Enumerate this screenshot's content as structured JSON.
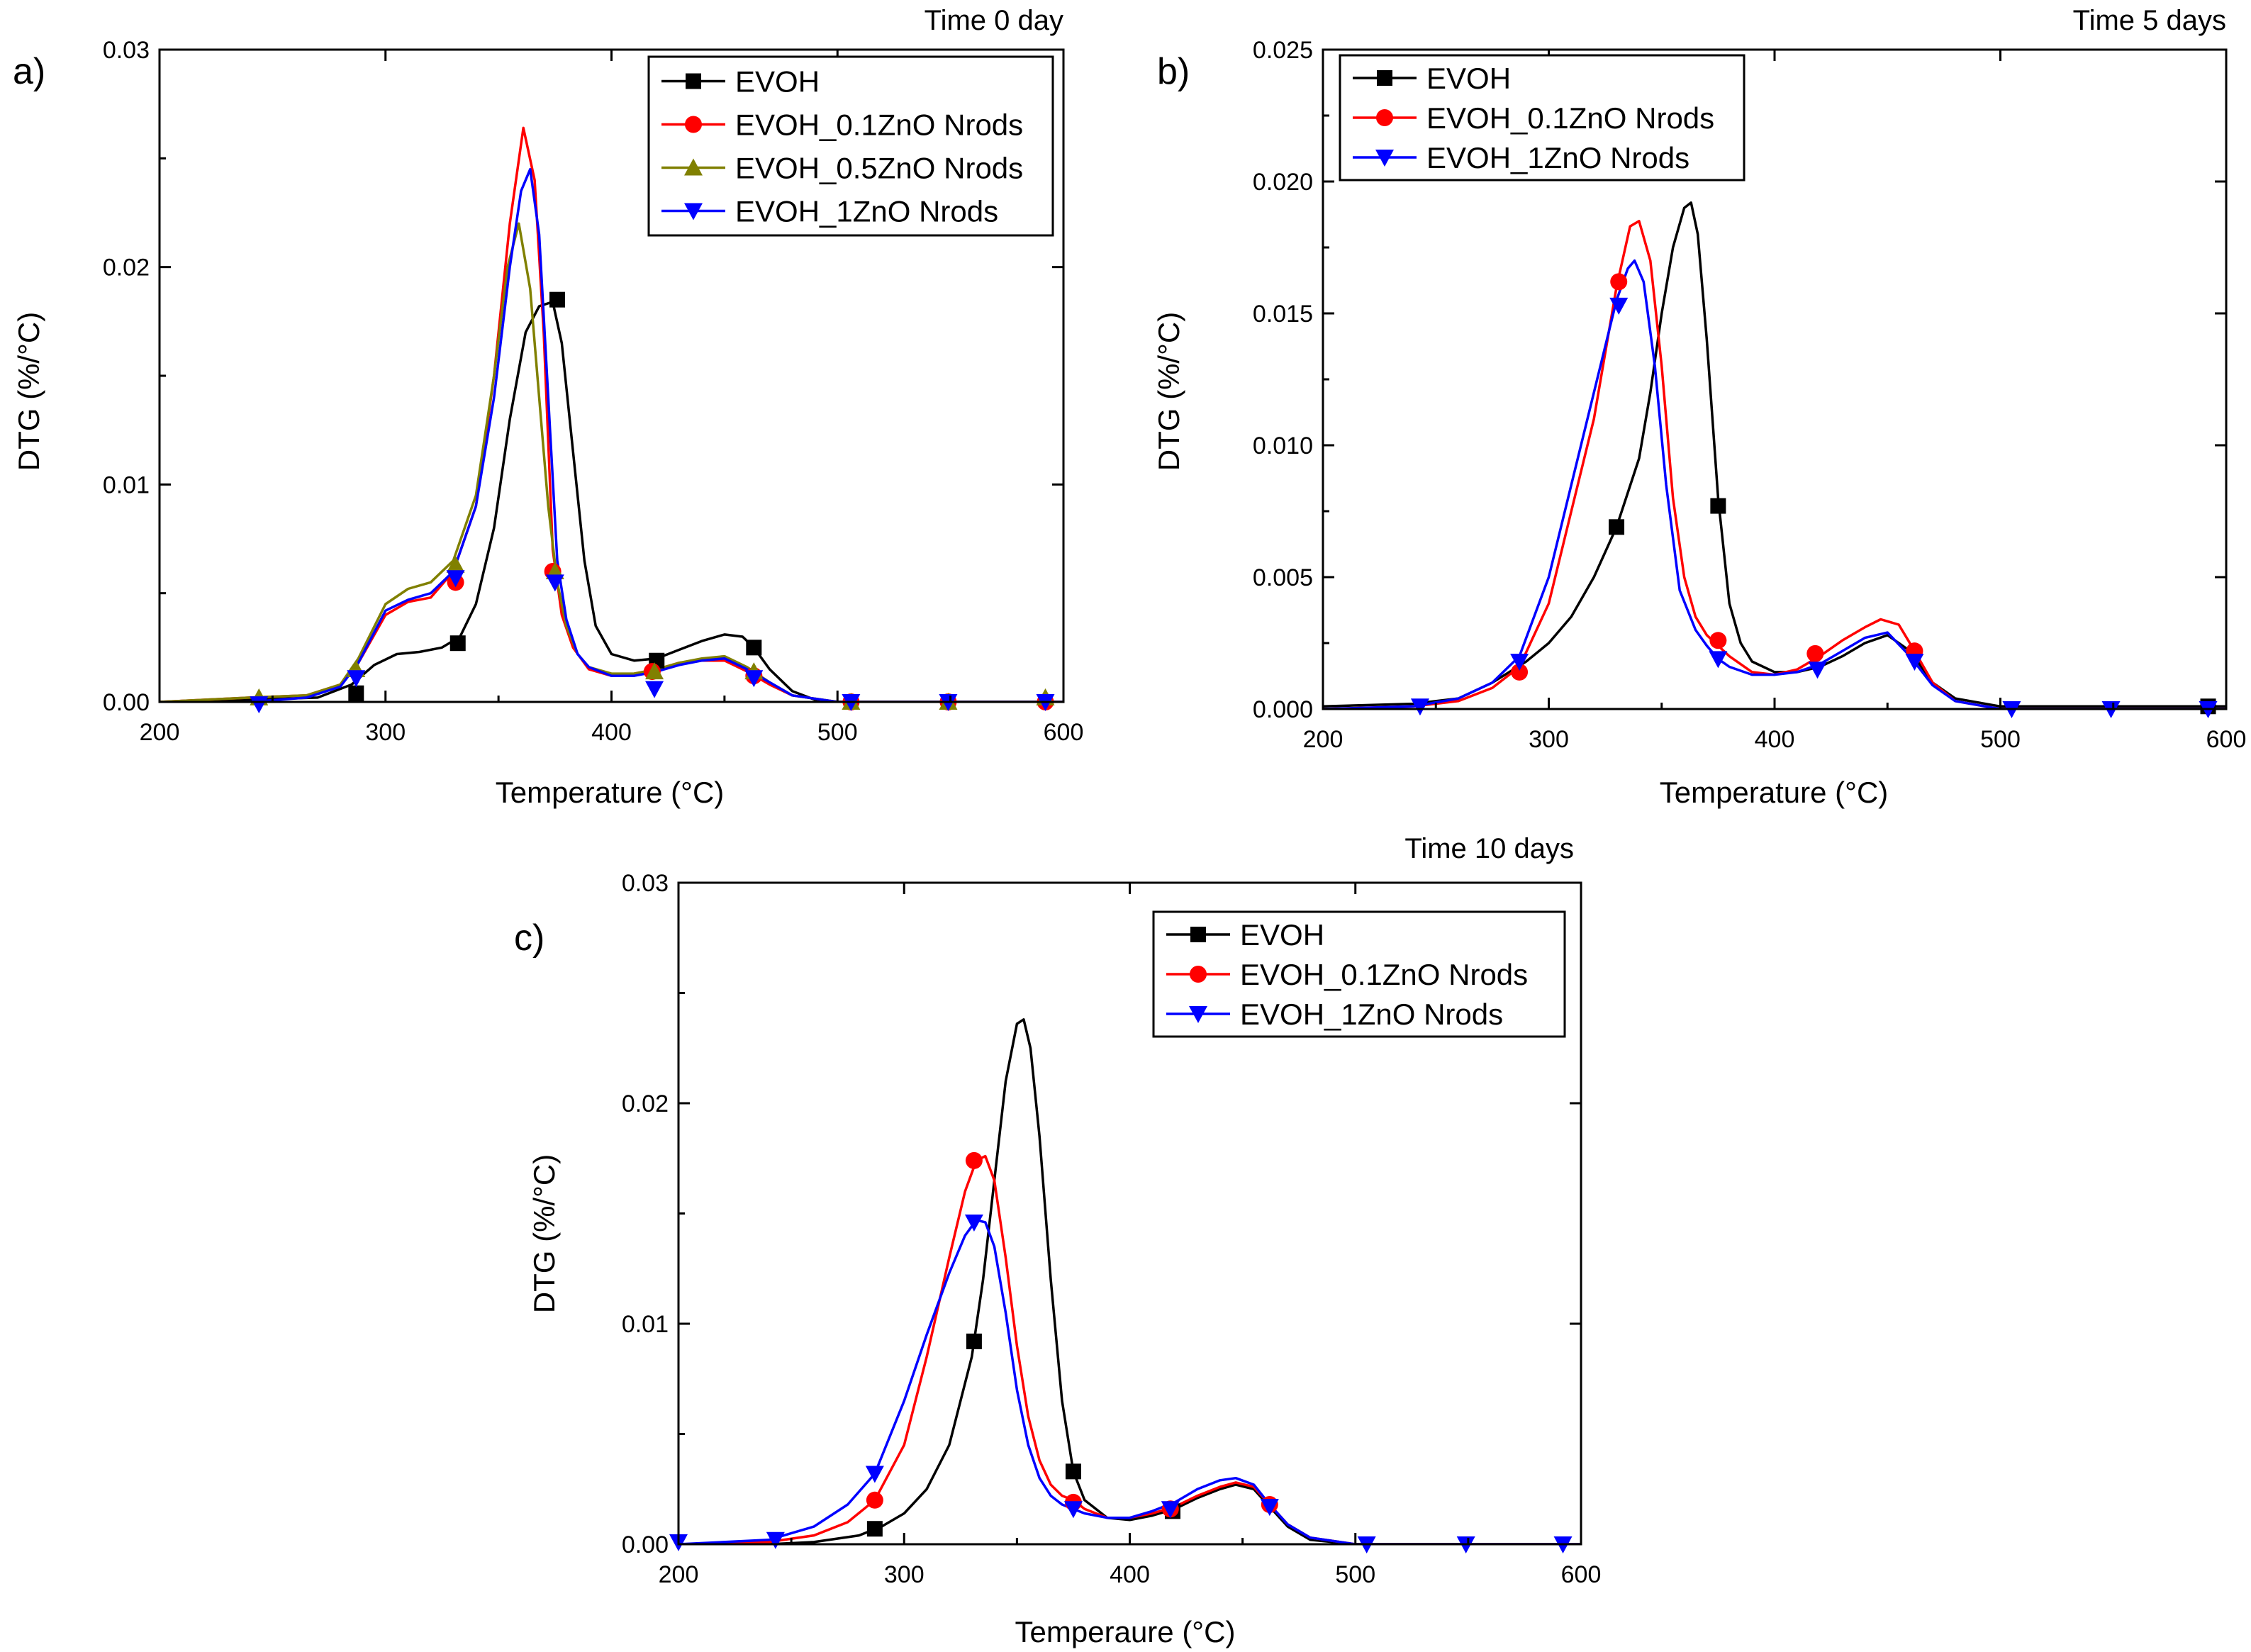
{
  "chart_data": [
    {
      "id": "a",
      "type": "line",
      "panel_label": "a)",
      "title": "Time 0 day",
      "xlabel": "Temperature (°C)",
      "ylabel": "DTG (%/°C)",
      "xlim": [
        200,
        600
      ],
      "ylim": [
        0,
        0.03
      ],
      "xticks": [
        200,
        300,
        400,
        500,
        600
      ],
      "xtick_labels": [
        "200",
        "300",
        "400",
        "500",
        "600"
      ],
      "yticks": [
        0,
        0.01,
        0.02,
        0.03
      ],
      "ytick_labels": [
        "0.00",
        "0.01",
        "0.02",
        "0.03"
      ],
      "legend_position": "top-right",
      "series": [
        {
          "name": "EVOH",
          "color": "#000000",
          "marker": "square",
          "x": [
            200,
            240,
            270,
            285,
            295,
            305,
            315,
            325,
            333,
            340,
            348,
            355,
            362,
            368,
            374,
            378,
            383,
            388,
            393,
            400,
            410,
            420,
            430,
            440,
            450,
            458,
            463,
            470,
            480,
            490,
            500,
            550,
            600
          ],
          "y": [
            0.0,
            0.0001,
            0.0002,
            0.0008,
            0.0017,
            0.0022,
            0.0023,
            0.0025,
            0.003,
            0.0045,
            0.008,
            0.013,
            0.017,
            0.0182,
            0.0184,
            0.0165,
            0.0115,
            0.0065,
            0.0035,
            0.0022,
            0.0019,
            0.002,
            0.0024,
            0.0028,
            0.0031,
            0.003,
            0.0025,
            0.0015,
            0.0005,
            0.0001,
            0.0,
            0.0,
            0.0
          ],
          "marker_x": [
            287,
            332,
            376,
            420,
            463
          ],
          "marker_y": [
            0.0004,
            0.0027,
            0.0185,
            0.0019,
            0.0025
          ]
        },
        {
          "name": "EVOH_0.1ZnO Nrods",
          "color": "#ff0000",
          "marker": "circle",
          "x": [
            200,
            240,
            265,
            280,
            288,
            300,
            310,
            320,
            330,
            340,
            348,
            355,
            361,
            366,
            370,
            374,
            378,
            383,
            390,
            400,
            410,
            420,
            430,
            440,
            450,
            460,
            470,
            480,
            500,
            550,
            600
          ],
          "y": [
            0.0,
            0.0002,
            0.0003,
            0.0008,
            0.0018,
            0.004,
            0.0046,
            0.0048,
            0.006,
            0.009,
            0.015,
            0.022,
            0.0264,
            0.024,
            0.017,
            0.007,
            0.004,
            0.0025,
            0.0015,
            0.0012,
            0.0013,
            0.0015,
            0.0018,
            0.0019,
            0.0019,
            0.0014,
            0.0008,
            0.0003,
            0.0,
            0.0,
            0.0
          ],
          "marker_x": [
            331,
            374,
            418,
            463,
            506,
            549,
            592
          ],
          "marker_y": [
            0.0055,
            0.006,
            0.0014,
            0.0012,
            0.0,
            0.0,
            0.0
          ]
        },
        {
          "name": "EVOH_0.5ZnO Nrods",
          "color": "#808000",
          "marker": "triangle-up",
          "x": [
            200,
            240,
            265,
            280,
            288,
            300,
            310,
            320,
            330,
            340,
            348,
            354,
            359,
            364,
            368,
            372,
            376,
            380,
            385,
            390,
            400,
            410,
            420,
            430,
            440,
            450,
            460,
            470,
            480,
            500,
            550,
            600
          ],
          "y": [
            0.0,
            0.0002,
            0.0003,
            0.0008,
            0.002,
            0.0045,
            0.0052,
            0.0055,
            0.0065,
            0.0095,
            0.015,
            0.02,
            0.022,
            0.019,
            0.014,
            0.009,
            0.0055,
            0.0035,
            0.0022,
            0.0016,
            0.0013,
            0.0013,
            0.0015,
            0.0018,
            0.002,
            0.0021,
            0.0016,
            0.0009,
            0.0003,
            0.0,
            0.0,
            0.0
          ],
          "marker_x": [
            244,
            287,
            331,
            375,
            419,
            463,
            506,
            549,
            592
          ],
          "marker_y": [
            0.0002,
            0.0015,
            0.0063,
            0.006,
            0.0014,
            0.0014,
            0.0,
            0.0,
            0.0002
          ]
        },
        {
          "name": "EVOH_1ZnO Nrods",
          "color": "#0000ff",
          "marker": "triangle-down",
          "x": [
            200,
            240,
            265,
            280,
            288,
            300,
            310,
            320,
            330,
            340,
            348,
            355,
            360,
            364,
            368,
            372,
            376,
            380,
            385,
            390,
            400,
            410,
            420,
            430,
            440,
            450,
            460,
            470,
            480,
            500,
            550,
            600
          ],
          "y": [
            -0.0001,
            0.0,
            0.0002,
            0.0007,
            0.0018,
            0.0042,
            0.0047,
            0.005,
            0.006,
            0.009,
            0.014,
            0.02,
            0.0235,
            0.0245,
            0.0215,
            0.014,
            0.0065,
            0.0038,
            0.0022,
            0.0016,
            0.0012,
            0.0012,
            0.0014,
            0.0017,
            0.0019,
            0.002,
            0.0015,
            0.0009,
            0.0003,
            0.0,
            0.0,
            0.0
          ],
          "marker_x": [
            244,
            287,
            331,
            375,
            419,
            463,
            506,
            549,
            592
          ],
          "marker_y": [
            -0.0001,
            0.0011,
            0.0057,
            0.0055,
            0.0006,
            0.0011,
            0.0,
            0.0,
            0.0
          ]
        }
      ]
    },
    {
      "id": "b",
      "type": "line",
      "panel_label": "b)",
      "title": "Time 5 days",
      "xlabel": "Temperature (°C)",
      "ylabel": "DTG (%/°C)",
      "xlim": [
        200,
        600
      ],
      "ylim": [
        0,
        0.025
      ],
      "xticks": [
        200,
        300,
        400,
        500,
        600
      ],
      "xtick_labels": [
        "200",
        "300",
        "400",
        "500",
        "600"
      ],
      "yticks": [
        0,
        0.005,
        0.01,
        0.015,
        0.02,
        0.025
      ],
      "ytick_labels": [
        "0.000",
        "0.005",
        "0.010",
        "0.015",
        "0.020",
        "0.025"
      ],
      "legend_position": "top-left",
      "series": [
        {
          "name": "EVOH",
          "color": "#000000",
          "marker": "square",
          "x": [
            200,
            240,
            260,
            275,
            290,
            300,
            310,
            320,
            330,
            340,
            345,
            350,
            355,
            360,
            363,
            366,
            370,
            375,
            380,
            385,
            390,
            400,
            410,
            420,
            430,
            440,
            450,
            460,
            470,
            480,
            500,
            550,
            600
          ],
          "y": [
            0.0001,
            0.0002,
            0.0004,
            0.001,
            0.0018,
            0.0025,
            0.0035,
            0.005,
            0.0069,
            0.0095,
            0.012,
            0.015,
            0.0175,
            0.019,
            0.0192,
            0.018,
            0.014,
            0.008,
            0.004,
            0.0025,
            0.0018,
            0.0014,
            0.0014,
            0.0016,
            0.002,
            0.0025,
            0.0028,
            0.0022,
            0.001,
            0.0004,
            0.0001,
            0.0001,
            0.0001
          ],
          "marker_x": [
            330,
            375,
            592
          ],
          "marker_y": [
            0.0069,
            0.0077,
            0.0001
          ]
        },
        {
          "name": "EVOH_0.1ZnO Nrods",
          "color": "#ff0000",
          "marker": "circle",
          "x": [
            200,
            240,
            260,
            275,
            287,
            300,
            310,
            320,
            330,
            336,
            340,
            345,
            350,
            355,
            360,
            365,
            370,
            375,
            380,
            390,
            400,
            410,
            420,
            430,
            440,
            447,
            455,
            462,
            470,
            480,
            500,
            550,
            600
          ],
          "y": [
            0.0,
            0.0001,
            0.0003,
            0.0008,
            0.0016,
            0.004,
            0.0075,
            0.011,
            0.016,
            0.0183,
            0.0185,
            0.017,
            0.013,
            0.008,
            0.005,
            0.0035,
            0.0028,
            0.0024,
            0.002,
            0.0014,
            0.0013,
            0.0015,
            0.002,
            0.0026,
            0.0031,
            0.0034,
            0.0032,
            0.0022,
            0.001,
            0.0003,
            0.0,
            0.0,
            0.0
          ],
          "marker_x": [
            287,
            331,
            375,
            418,
            462
          ],
          "marker_y": [
            0.0014,
            0.0162,
            0.0026,
            0.0021,
            0.0022
          ]
        },
        {
          "name": "EVOH_1ZnO Nrods",
          "color": "#0000ff",
          "marker": "triangle-down",
          "x": [
            200,
            240,
            260,
            275,
            287,
            300,
            310,
            320,
            330,
            335,
            338,
            342,
            347,
            352,
            358,
            365,
            370,
            375,
            380,
            390,
            400,
            410,
            420,
            430,
            440,
            450,
            460,
            470,
            480,
            500,
            550,
            600
          ],
          "y": [
            0.0,
            0.0001,
            0.0004,
            0.001,
            0.002,
            0.005,
            0.0085,
            0.012,
            0.0155,
            0.0167,
            0.017,
            0.0162,
            0.013,
            0.0085,
            0.0045,
            0.003,
            0.0024,
            0.0019,
            0.0016,
            0.0013,
            0.0013,
            0.0014,
            0.0017,
            0.0022,
            0.0027,
            0.0029,
            0.002,
            0.0009,
            0.0003,
            0.0,
            0.0,
            0.0
          ],
          "marker_x": [
            243,
            287,
            331,
            375,
            419,
            462,
            505,
            549,
            592
          ],
          "marker_y": [
            0.0001,
            0.0018,
            0.0153,
            0.0019,
            0.0015,
            0.0018,
            0.0,
            0.0,
            0.0
          ]
        }
      ]
    },
    {
      "id": "c",
      "type": "line",
      "panel_label": "c)",
      "title": "Time 10 days",
      "xlabel": "Temperaure (°C)",
      "ylabel": "DTG (%/°C)",
      "xlim": [
        200,
        600
      ],
      "ylim": [
        0,
        0.03
      ],
      "xticks": [
        200,
        300,
        400,
        500,
        600
      ],
      "xtick_labels": [
        "200",
        "300",
        "400",
        "500",
        "600"
      ],
      "yticks": [
        0,
        0.01,
        0.02,
        0.03
      ],
      "ytick_labels": [
        "0.00",
        "0.01",
        "0.02",
        "0.03"
      ],
      "legend_position": "top-right",
      "series": [
        {
          "name": "EVOH",
          "color": "#000000",
          "marker": "square",
          "x": [
            200,
            240,
            260,
            280,
            290,
            300,
            310,
            320,
            330,
            335,
            340,
            345,
            350,
            353,
            356,
            360,
            365,
            370,
            375,
            380,
            390,
            400,
            410,
            420,
            430,
            440,
            447,
            455,
            462,
            470,
            480,
            500,
            550,
            600
          ],
          "y": [
            0.0,
            0.0,
            0.0001,
            0.0004,
            0.0008,
            0.0014,
            0.0025,
            0.0045,
            0.0085,
            0.012,
            0.0165,
            0.021,
            0.0236,
            0.0238,
            0.0225,
            0.0185,
            0.012,
            0.0065,
            0.0033,
            0.002,
            0.0012,
            0.0011,
            0.0013,
            0.0016,
            0.0021,
            0.0025,
            0.0027,
            0.0025,
            0.0017,
            0.0008,
            0.0002,
            0.0,
            0.0,
            0.0
          ],
          "marker_x": [
            287,
            331,
            375,
            419
          ],
          "marker_y": [
            0.0007,
            0.0092,
            0.0033,
            0.0015
          ]
        },
        {
          "name": "EVOH_0.1ZnO Nrods",
          "color": "#ff0000",
          "marker": "circle",
          "x": [
            200,
            240,
            260,
            275,
            287,
            300,
            310,
            320,
            327,
            332,
            336,
            340,
            345,
            350,
            355,
            360,
            365,
            370,
            375,
            380,
            390,
            400,
            410,
            420,
            430,
            440,
            447,
            455,
            462,
            470,
            480,
            500,
            550,
            600
          ],
          "y": [
            0.0,
            0.0001,
            0.0004,
            0.001,
            0.002,
            0.0045,
            0.0085,
            0.013,
            0.016,
            0.0174,
            0.0176,
            0.0165,
            0.013,
            0.009,
            0.0058,
            0.0038,
            0.0027,
            0.0022,
            0.002,
            0.0016,
            0.0012,
            0.0012,
            0.0014,
            0.0017,
            0.0022,
            0.0026,
            0.0028,
            0.0026,
            0.0018,
            0.0009,
            0.0003,
            0.0,
            0.0,
            0.0
          ],
          "marker_x": [
            287,
            331,
            375,
            418,
            462
          ],
          "marker_y": [
            0.002,
            0.0174,
            0.0019,
            0.0016,
            0.0018
          ]
        },
        {
          "name": "EVOH_1ZnO Nrods",
          "color": "#0000ff",
          "marker": "triangle-down",
          "x": [
            200,
            240,
            260,
            275,
            287,
            300,
            310,
            320,
            327,
            332,
            336,
            340,
            345,
            350,
            355,
            360,
            365,
            370,
            375,
            380,
            390,
            400,
            410,
            420,
            430,
            440,
            447,
            455,
            462,
            470,
            480,
            500,
            550,
            600
          ],
          "y": [
            0.0,
            0.0002,
            0.0008,
            0.0018,
            0.0032,
            0.0065,
            0.0095,
            0.0123,
            0.014,
            0.0147,
            0.0146,
            0.0135,
            0.0105,
            0.007,
            0.0045,
            0.003,
            0.0022,
            0.0018,
            0.0016,
            0.0014,
            0.0012,
            0.0012,
            0.0015,
            0.0019,
            0.0025,
            0.0029,
            0.003,
            0.0027,
            0.0018,
            0.0009,
            0.0003,
            0.0,
            0.0,
            0.0
          ],
          "marker_x": [
            200,
            243,
            287,
            331,
            375,
            418,
            462,
            505,
            549,
            592
          ],
          "marker_y": [
            0.0001,
            0.0002,
            0.0032,
            0.0146,
            0.0016,
            0.0016,
            0.0017,
            0.0,
            0.0,
            0.0
          ]
        }
      ]
    }
  ]
}
